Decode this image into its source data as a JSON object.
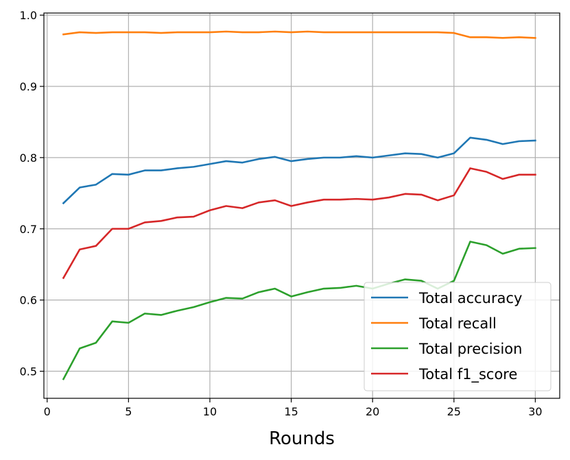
{
  "chart_data": {
    "type": "line",
    "title": "",
    "xlabel": "Rounds",
    "ylabel": "",
    "xlim": [
      -0.2,
      31.5
    ],
    "ylim": [
      0.462,
      1.003
    ],
    "xticks": [
      0,
      5,
      10,
      15,
      20,
      25,
      30
    ],
    "xtick_labels": [
      "0",
      "5",
      "10",
      "15",
      "20",
      "25",
      "30"
    ],
    "yticks": [
      0.5,
      0.6,
      0.7,
      0.8,
      0.9,
      1.0
    ],
    "ytick_labels": [
      "0.5",
      "0.6",
      "0.7",
      "0.8",
      "0.9",
      "1.0"
    ],
    "grid": true,
    "legend_position": "bottom-right",
    "x": [
      1,
      2,
      3,
      4,
      5,
      6,
      7,
      8,
      9,
      10,
      11,
      12,
      13,
      14,
      15,
      16,
      17,
      18,
      19,
      20,
      21,
      22,
      23,
      24,
      25,
      26,
      27,
      28,
      29,
      30
    ],
    "series": [
      {
        "name": "Total accuracy",
        "color": "#1f77b4",
        "values": [
          0.736,
          0.758,
          0.762,
          0.777,
          0.776,
          0.782,
          0.782,
          0.785,
          0.787,
          0.791,
          0.795,
          0.793,
          0.798,
          0.801,
          0.795,
          0.798,
          0.8,
          0.8,
          0.802,
          0.8,
          0.803,
          0.806,
          0.805,
          0.8,
          0.806,
          0.828,
          0.825,
          0.819,
          0.823,
          0.824
        ]
      },
      {
        "name": "Total recall",
        "color": "#ff7f0e",
        "values": [
          0.973,
          0.976,
          0.975,
          0.976,
          0.976,
          0.976,
          0.975,
          0.976,
          0.976,
          0.976,
          0.977,
          0.976,
          0.976,
          0.977,
          0.976,
          0.977,
          0.976,
          0.976,
          0.976,
          0.976,
          0.976,
          0.976,
          0.976,
          0.976,
          0.975,
          0.969,
          0.969,
          0.968,
          0.969,
          0.968
        ]
      },
      {
        "name": "Total precision",
        "color": "#2ca02c",
        "values": [
          0.489,
          0.532,
          0.54,
          0.57,
          0.568,
          0.581,
          0.579,
          0.585,
          0.59,
          0.597,
          0.603,
          0.602,
          0.611,
          0.616,
          0.605,
          0.611,
          0.616,
          0.617,
          0.62,
          0.616,
          0.623,
          0.629,
          0.627,
          0.616,
          0.627,
          0.682,
          0.677,
          0.665,
          0.672,
          0.673
        ]
      },
      {
        "name": "Total f1_score",
        "color": "#d62728",
        "values": [
          0.631,
          0.671,
          0.676,
          0.7,
          0.7,
          0.709,
          0.711,
          0.716,
          0.717,
          0.726,
          0.732,
          0.729,
          0.737,
          0.74,
          0.732,
          0.737,
          0.741,
          0.741,
          0.742,
          0.741,
          0.744,
          0.749,
          0.748,
          0.74,
          0.747,
          0.785,
          0.78,
          0.77,
          0.776,
          0.776
        ]
      }
    ]
  }
}
